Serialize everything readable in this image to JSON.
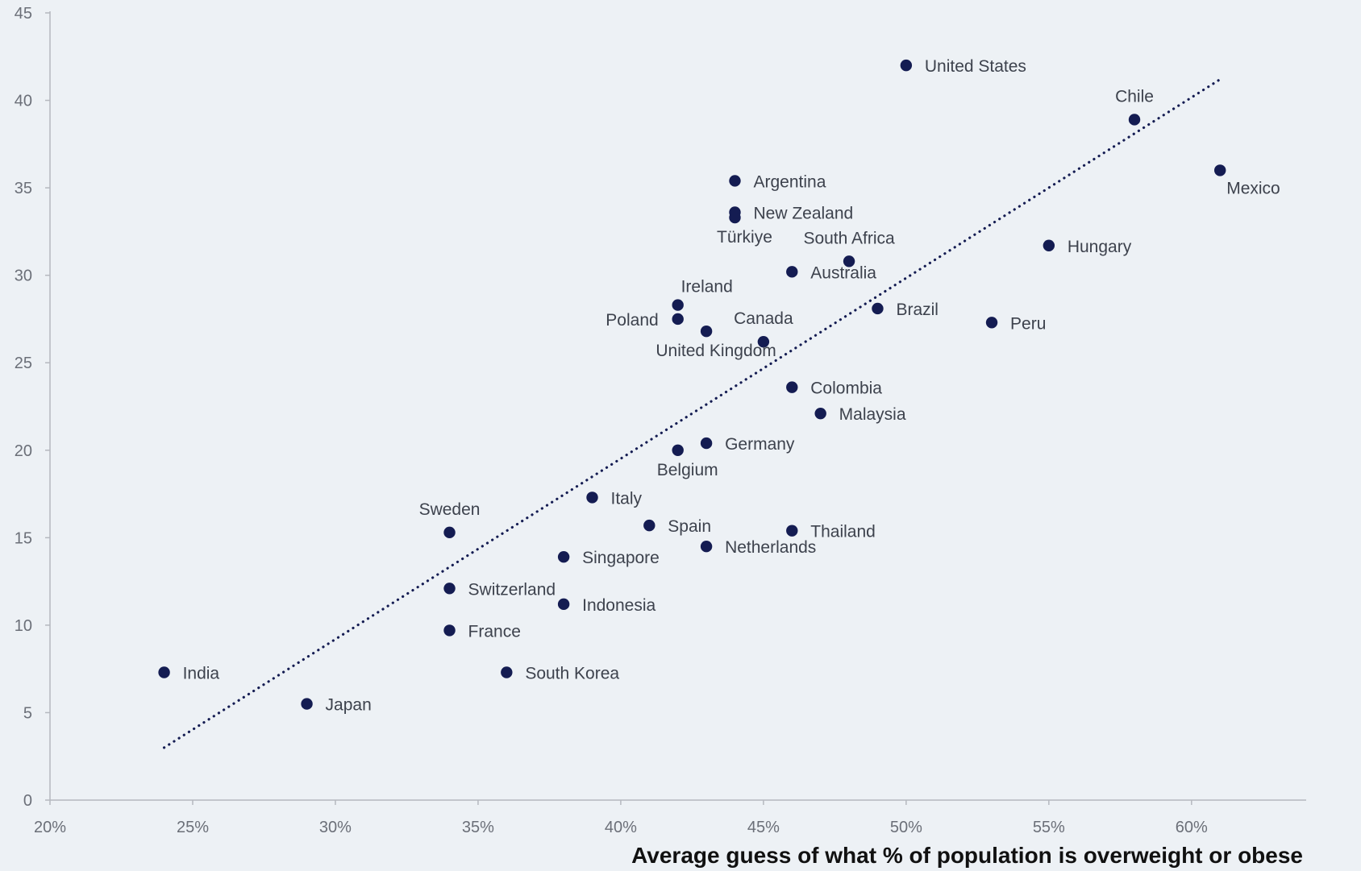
{
  "colors": {
    "background": "#edf1f5",
    "point": "#141c52",
    "trendline": "#141c52",
    "axis": "#b5b8bf",
    "tick_text": "#6b6f78",
    "label_text": "#3d424d"
  },
  "chart_data": {
    "type": "scatter",
    "title": "",
    "xlabel": "Average guess of what % of population is overweight or obese",
    "ylabel": "",
    "xlim": [
      20,
      62
    ],
    "ylim": [
      0,
      45
    ],
    "x_unit": "%",
    "x_ticks": [
      20,
      25,
      30,
      35,
      40,
      45,
      50,
      55,
      60
    ],
    "x_tick_labels": [
      "20%",
      "25%",
      "30%",
      "35%",
      "40%",
      "45%",
      "50%",
      "55%",
      "60%"
    ],
    "y_ticks": [
      0,
      5,
      10,
      15,
      20,
      25,
      30,
      35,
      40,
      45
    ],
    "y_tick_labels": [
      "0",
      "5",
      "10",
      "15",
      "20",
      "25",
      "30",
      "35",
      "40",
      "45"
    ],
    "grid": false,
    "legend": "none",
    "trendline": {
      "style": "dotted",
      "from": [
        24,
        3
      ],
      "to": [
        61,
        41.2
      ]
    },
    "points": [
      {
        "label": "United States",
        "x": 50,
        "y": 42,
        "label_pos": "right"
      },
      {
        "label": "Chile",
        "x": 58,
        "y": 38.9,
        "label_pos": "above"
      },
      {
        "label": "Mexico",
        "x": 61,
        "y": 36,
        "label_pos": "below-right"
      },
      {
        "label": "Argentina",
        "x": 44,
        "y": 35.4,
        "label_pos": "right"
      },
      {
        "label": "New Zealand",
        "x": 44,
        "y": 33.6,
        "label_pos": "right"
      },
      {
        "label": "Türkiye",
        "x": 44,
        "y": 33.3,
        "label_pos": "below"
      },
      {
        "label": "South Africa",
        "x": 48,
        "y": 30.8,
        "label_pos": "above"
      },
      {
        "label": "Hungary",
        "x": 55,
        "y": 31.7,
        "label_pos": "right"
      },
      {
        "label": "Australia",
        "x": 46,
        "y": 30.2,
        "label_pos": "right"
      },
      {
        "label": "Ireland",
        "x": 42,
        "y": 28.3,
        "label_pos": "above-right"
      },
      {
        "label": "Poland",
        "x": 42,
        "y": 27.5,
        "label_pos": "left"
      },
      {
        "label": "Brazil",
        "x": 49,
        "y": 28.1,
        "label_pos": "right"
      },
      {
        "label": "Peru",
        "x": 53,
        "y": 27.3,
        "label_pos": "right"
      },
      {
        "label": "United Kingdom",
        "x": 43,
        "y": 26.8,
        "label_pos": "below"
      },
      {
        "label": "Canada",
        "x": 45,
        "y": 26.2,
        "label_pos": "above"
      },
      {
        "label": "Colombia",
        "x": 46,
        "y": 23.6,
        "label_pos": "right"
      },
      {
        "label": "Malaysia",
        "x": 47,
        "y": 22.1,
        "label_pos": "right"
      },
      {
        "label": "Germany",
        "x": 43,
        "y": 20.4,
        "label_pos": "right"
      },
      {
        "label": "Belgium",
        "x": 42,
        "y": 20,
        "label_pos": "below"
      },
      {
        "label": "Italy",
        "x": 39,
        "y": 17.3,
        "label_pos": "right"
      },
      {
        "label": "Sweden",
        "x": 34,
        "y": 15.3,
        "label_pos": "above"
      },
      {
        "label": "Spain",
        "x": 41,
        "y": 15.7,
        "label_pos": "right"
      },
      {
        "label": "Thailand",
        "x": 46,
        "y": 15.4,
        "label_pos": "right"
      },
      {
        "label": "Netherlands",
        "x": 43,
        "y": 14.5,
        "label_pos": "right"
      },
      {
        "label": "Singapore",
        "x": 38,
        "y": 13.9,
        "label_pos": "right"
      },
      {
        "label": "Switzerland",
        "x": 34,
        "y": 12.1,
        "label_pos": "right"
      },
      {
        "label": "Indonesia",
        "x": 38,
        "y": 11.2,
        "label_pos": "right"
      },
      {
        "label": "France",
        "x": 34,
        "y": 9.7,
        "label_pos": "right"
      },
      {
        "label": "India",
        "x": 24,
        "y": 7.3,
        "label_pos": "right"
      },
      {
        "label": "South Korea",
        "x": 36,
        "y": 7.3,
        "label_pos": "right"
      },
      {
        "label": "Japan",
        "x": 29,
        "y": 5.5,
        "label_pos": "right"
      }
    ]
  }
}
